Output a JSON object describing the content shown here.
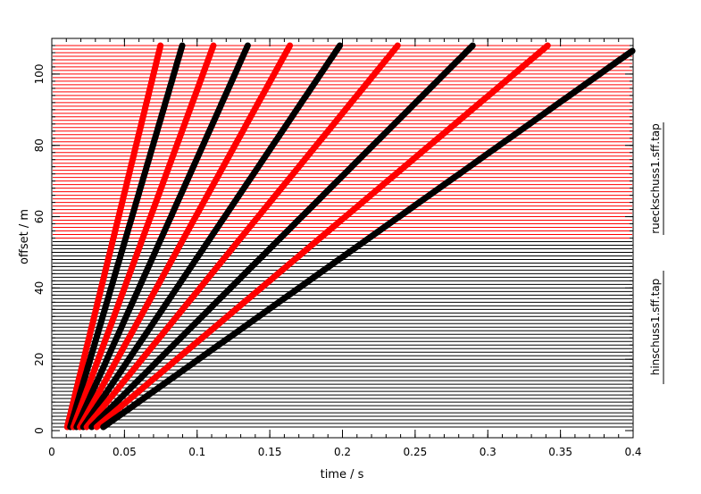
{
  "chart_data": {
    "type": "line",
    "title": "",
    "xlabel": "time / s",
    "ylabel": "offset / m",
    "xlim": [
      0,
      0.4
    ],
    "ylim": [
      -2,
      110
    ],
    "x_ticks": [
      "0",
      "0.05",
      "0.1",
      "0.15",
      "0.2",
      "0.25",
      "0.3",
      "0.35",
      "0.4"
    ],
    "y_ticks": [
      "0",
      "20",
      "40",
      "60",
      "80",
      "100"
    ],
    "x_tick_values": [
      0,
      0.05,
      0.1,
      0.15,
      0.2,
      0.25,
      0.3,
      0.35,
      0.4
    ],
    "y_tick_values": [
      0,
      20,
      40,
      60,
      80,
      100
    ],
    "trace_offsets": {
      "start": 1,
      "end": 108,
      "step": 1
    },
    "series": [
      {
        "name": "hinschuss1.sff.tap",
        "color": "#000000",
        "offset_range": [
          0,
          54
        ]
      },
      {
        "name": "rueckschuss1.sff.tap",
        "color": "#ff0000",
        "offset_range": [
          54,
          108
        ]
      }
    ],
    "events": [
      {
        "t0": 0.01,
        "slowness": 0.0006
      },
      {
        "t0": 0.012,
        "slowness": 0.00072
      },
      {
        "t0": 0.014,
        "slowness": 0.0009
      },
      {
        "t0": 0.016,
        "slowness": 0.0011
      },
      {
        "t0": 0.018,
        "slowness": 0.00135
      },
      {
        "t0": 0.02,
        "slowness": 0.00165
      },
      {
        "t0": 0.022,
        "slowness": 0.002
      },
      {
        "t0": 0.025,
        "slowness": 0.00245
      },
      {
        "t0": 0.028,
        "slowness": 0.0029
      },
      {
        "t0": 0.032,
        "slowness": 0.00345
      }
    ]
  },
  "side_labels": {
    "lower": "hinschuss1.sff.tap",
    "upper": "rueckschuss1.sff.tap"
  }
}
